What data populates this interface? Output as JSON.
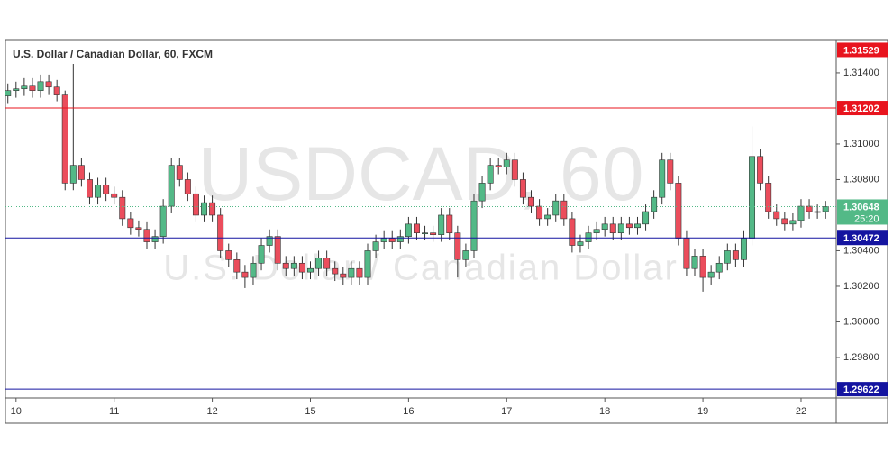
{
  "chart_data": {
    "type": "candlestick",
    "title": "U.S. Dollar / Canadian Dollar, 60, FXCM",
    "watermark": "USDCAD, 60",
    "watermark_subtitle": "U.S. Dollar / Canadian Dollar",
    "countdown": "25:20",
    "up_color": "#53b987",
    "down_color": "#eb4d5c",
    "open": [
      1.3127,
      1.313,
      1.3131,
      1.3133,
      1.313,
      1.3135,
      1.3132,
      1.3128,
      1.3078,
      1.3088,
      1.308,
      1.307,
      1.3077,
      1.3072,
      1.307,
      1.3058,
      1.3053,
      1.3052,
      1.3045,
      1.3048,
      1.3065,
      1.3088,
      1.308,
      1.3072,
      1.306,
      1.3067,
      1.306,
      1.304,
      1.3035,
      1.3028,
      1.3025,
      1.3033,
      1.3043,
      1.3048,
      1.3033,
      1.303,
      1.3033,
      1.3028,
      1.303,
      1.3036,
      1.303,
      1.3027,
      1.3025,
      1.303,
      1.3025,
      1.304,
      1.3045,
      1.3047,
      1.3045,
      1.3048,
      1.3055,
      1.305,
      1.305,
      1.3049,
      1.306,
      1.305,
      1.3035,
      1.304,
      1.3068,
      1.3078,
      1.3088,
      1.3087,
      1.3091,
      1.308,
      1.307,
      1.3065,
      1.3058,
      1.306,
      1.3068,
      1.3058,
      1.3043,
      1.3045,
      1.305,
      1.3052,
      1.3055,
      1.305,
      1.3055,
      1.3053,
      1.3055,
      1.3062,
      1.307,
      1.3091,
      1.3078,
      1.3047,
      1.303,
      1.3037,
      1.3025,
      1.3028,
      1.3033,
      1.304,
      1.3035,
      1.3047,
      1.3093,
      1.3078,
      1.3062,
      1.3058,
      1.3055,
      1.3057,
      1.3065,
      1.3062,
      1.3062
    ],
    "high": [
      1.3134,
      1.3135,
      1.3137,
      1.3137,
      1.3139,
      1.3139,
      1.3136,
      1.313,
      1.3145,
      1.3092,
      1.3084,
      1.3081,
      1.3081,
      1.3076,
      1.3074,
      1.3062,
      1.3057,
      1.3056,
      1.3052,
      1.3069,
      1.3092,
      1.3092,
      1.3084,
      1.3076,
      1.3071,
      1.3071,
      1.3064,
      1.3044,
      1.3039,
      1.3032,
      1.3037,
      1.3047,
      1.3052,
      1.3052,
      1.3037,
      1.3037,
      1.3037,
      1.3034,
      1.304,
      1.304,
      1.3034,
      1.3031,
      1.3034,
      1.3034,
      1.3044,
      1.3049,
      1.3051,
      1.3051,
      1.3052,
      1.3059,
      1.3059,
      1.3054,
      1.3054,
      1.3064,
      1.3064,
      1.3054,
      1.3044,
      1.3072,
      1.3082,
      1.3092,
      1.3092,
      1.3095,
      1.3095,
      1.3084,
      1.3074,
      1.3069,
      1.3064,
      1.3072,
      1.3072,
      1.3062,
      1.3049,
      1.3054,
      1.3056,
      1.3059,
      1.3059,
      1.3059,
      1.3059,
      1.3059,
      1.3066,
      1.3074,
      1.3095,
      1.3095,
      1.3082,
      1.3051,
      1.3041,
      1.3041,
      1.3032,
      1.3037,
      1.3044,
      1.3044,
      1.3051,
      1.311,
      1.3097,
      1.3082,
      1.3066,
      1.3062,
      1.3061,
      1.3069,
      1.3069,
      1.3066,
      1.3068
    ],
    "low": [
      1.3123,
      1.3126,
      1.3127,
      1.3126,
      1.3126,
      1.3128,
      1.3124,
      1.3074,
      1.3074,
      1.3076,
      1.3066,
      1.3066,
      1.3068,
      1.3066,
      1.3054,
      1.3049,
      1.3048,
      1.3041,
      1.3041,
      1.3044,
      1.3061,
      1.3076,
      1.3068,
      1.3056,
      1.3056,
      1.3056,
      1.3036,
      1.3031,
      1.3024,
      1.3019,
      1.3021,
      1.3029,
      1.3039,
      1.3029,
      1.3026,
      1.3026,
      1.3024,
      1.3024,
      1.3026,
      1.3026,
      1.3023,
      1.3021,
      1.3021,
      1.3021,
      1.3021,
      1.3036,
      1.3041,
      1.3041,
      1.3041,
      1.3044,
      1.3046,
      1.3046,
      1.3045,
      1.3045,
      1.3046,
      1.3025,
      1.3031,
      1.3036,
      1.3064,
      1.3074,
      1.3083,
      1.3083,
      1.3076,
      1.3066,
      1.3061,
      1.3054,
      1.3054,
      1.3056,
      1.3054,
      1.3039,
      1.3039,
      1.3041,
      1.3046,
      1.3048,
      1.3046,
      1.3046,
      1.3049,
      1.3049,
      1.3051,
      1.3058,
      1.3066,
      1.3074,
      1.3043,
      1.3026,
      1.3026,
      1.3017,
      1.3021,
      1.3024,
      1.3029,
      1.3031,
      1.3031,
      1.3043,
      1.3074,
      1.3058,
      1.3054,
      1.3051,
      1.3051,
      1.3053,
      1.3058,
      1.3058,
      1.3058
    ],
    "close": [
      1.313,
      1.3131,
      1.3133,
      1.313,
      1.3135,
      1.3132,
      1.3128,
      1.3078,
      1.3088,
      1.308,
      1.307,
      1.3077,
      1.3072,
      1.307,
      1.3058,
      1.3053,
      1.3052,
      1.3045,
      1.3048,
      1.3065,
      1.3088,
      1.308,
      1.3072,
      1.306,
      1.3067,
      1.306,
      1.304,
      1.3035,
      1.3028,
      1.3025,
      1.3033,
      1.3043,
      1.3048,
      1.3033,
      1.303,
      1.3033,
      1.3028,
      1.303,
      1.3036,
      1.303,
      1.3027,
      1.3025,
      1.303,
      1.3025,
      1.304,
      1.3045,
      1.3047,
      1.3045,
      1.3048,
      1.3055,
      1.305,
      1.305,
      1.3049,
      1.306,
      1.305,
      1.3035,
      1.304,
      1.3068,
      1.3078,
      1.3088,
      1.3087,
      1.3091,
      1.308,
      1.307,
      1.3065,
      1.3058,
      1.306,
      1.3068,
      1.3058,
      1.3043,
      1.3045,
      1.305,
      1.3052,
      1.3055,
      1.305,
      1.3055,
      1.3053,
      1.3055,
      1.3062,
      1.307,
      1.3091,
      1.3078,
      1.3047,
      1.303,
      1.3037,
      1.3025,
      1.3028,
      1.3033,
      1.304,
      1.3035,
      1.3047,
      1.3093,
      1.3078,
      1.3062,
      1.3058,
      1.3055,
      1.3057,
      1.3065,
      1.3062,
      1.3062,
      1.30648
    ],
    "xlim": [
      -0.3,
      101.3
    ],
    "xticks": [
      {
        "value": 1,
        "label": "10"
      },
      {
        "value": 13,
        "label": "11"
      },
      {
        "value": 25,
        "label": "12"
      },
      {
        "value": 37,
        "label": "15"
      },
      {
        "value": 49,
        "label": "16"
      },
      {
        "value": 61,
        "label": "17"
      },
      {
        "value": 73,
        "label": "18"
      },
      {
        "value": 85,
        "label": "19"
      },
      {
        "value": 97,
        "label": "22"
      }
    ],
    "ylim": [
      1.29572,
      1.31587
    ],
    "yticks": [
      {
        "value": 1.298,
        "label": "1.29800"
      },
      {
        "value": 1.3,
        "label": "1.30000"
      },
      {
        "value": 1.302,
        "label": "1.30200"
      },
      {
        "value": 1.304,
        "label": "1.30400"
      },
      {
        "value": 1.308,
        "label": "1.30800"
      },
      {
        "value": 1.31,
        "label": "1.31000"
      },
      {
        "value": 1.314,
        "label": "1.31400"
      }
    ],
    "hlines": [
      {
        "value": 1.31529,
        "color": "#e8141e"
      },
      {
        "value": 1.31202,
        "color": "#e8141e"
      },
      {
        "value": 1.30472,
        "color": "#1414a0"
      },
      {
        "value": 1.29622,
        "color": "#1414a0"
      }
    ]
  }
}
